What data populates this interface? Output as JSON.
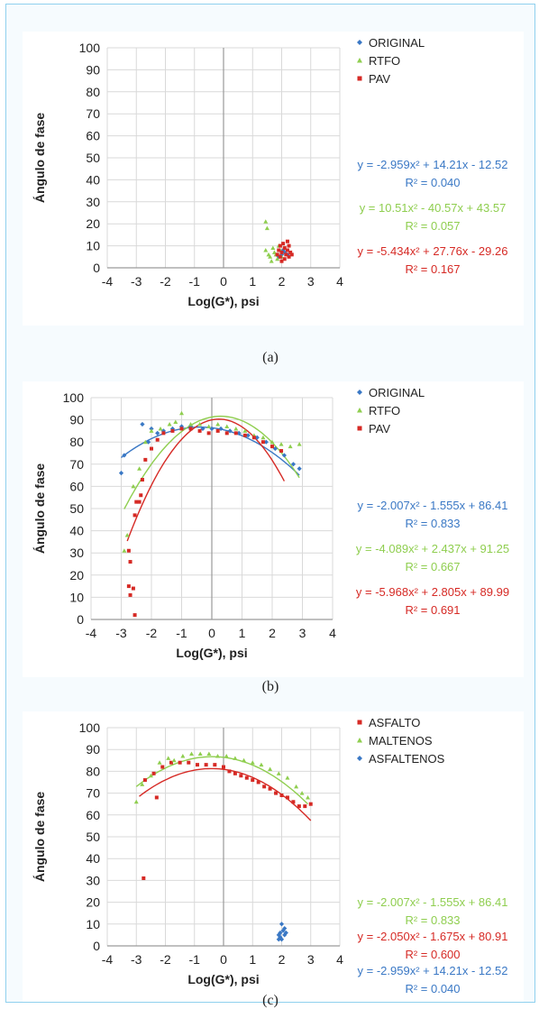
{
  "captions": [
    "(a)",
    "(b)",
    "(c)"
  ],
  "colors": {
    "blue": "#3a78c5",
    "green": "#8fce4f",
    "red": "#d62a25",
    "axis": "#9a9a9a",
    "grid": "#d9d9d9"
  },
  "chart_data": [
    {
      "type": "scatter",
      "ylabel": "Ángulo de fase",
      "xlabel": "Log(G*), psi",
      "xlim": [
        -4,
        4
      ],
      "ylim": [
        0,
        100
      ],
      "xticks": [
        -4,
        -3,
        -2,
        -1,
        0,
        1,
        2,
        3,
        4
      ],
      "yticks": [
        0,
        10,
        20,
        30,
        40,
        50,
        60,
        70,
        80,
        90,
        100
      ],
      "grid": true,
      "legend_position": "top-right",
      "series": [
        {
          "name": "ORIGINAL",
          "color": "blue",
          "points": [
            [
              1.9,
              5
            ],
            [
              2.0,
              6
            ],
            [
              2.1,
              7
            ],
            [
              2.2,
              6
            ],
            [
              2.05,
              8
            ]
          ],
          "fit": null
        },
        {
          "name": "RTFO",
          "color": "green",
          "points": [
            [
              1.45,
              21
            ],
            [
              1.5,
              18
            ],
            [
              1.45,
              8
            ],
            [
              1.55,
              6
            ],
            [
              1.6,
              5
            ],
            [
              1.7,
              9
            ],
            [
              1.75,
              7
            ],
            [
              1.8,
              6
            ],
            [
              1.9,
              10
            ],
            [
              1.95,
              8
            ],
            [
              2.0,
              5
            ],
            [
              1.65,
              3
            ],
            [
              1.85,
              4
            ]
          ],
          "fit": null
        },
        {
          "name": "PAV",
          "color": "red",
          "points": [
            [
              1.85,
              6
            ],
            [
              1.9,
              8
            ],
            [
              1.95,
              10
            ],
            [
              2.0,
              7
            ],
            [
              2.05,
              11
            ],
            [
              2.1,
              9
            ],
            [
              2.15,
              6
            ],
            [
              2.2,
              8
            ],
            [
              2.25,
              5
            ],
            [
              2.3,
              7
            ],
            [
              2.35,
              6
            ],
            [
              2.1,
              4
            ],
            [
              1.95,
              5
            ],
            [
              2.0,
              3
            ],
            [
              2.2,
              12
            ],
            [
              2.25,
              10
            ]
          ],
          "fit": null
        }
      ],
      "equations": [
        {
          "eq": "y = -2.959x² + 14.21x - 12.52",
          "r2": "R² = 0.040",
          "color": "blue"
        },
        {
          "eq": "y = 10.51x² - 40.57x + 43.57",
          "r2": "R² = 0.057",
          "color": "green"
        },
        {
          "eq": "y = -5.434x² + 27.76x - 29.26",
          "r2": "R² = 0.167",
          "color": "red"
        }
      ]
    },
    {
      "type": "scatter",
      "ylabel": "Ángulo de fase",
      "xlabel": "Log(G*), psi",
      "xlim": [
        -4,
        4
      ],
      "ylim": [
        0,
        100
      ],
      "xticks": [
        -4,
        -3,
        -2,
        -1,
        0,
        1,
        2,
        3,
        4
      ],
      "yticks": [
        0,
        10,
        20,
        30,
        40,
        50,
        60,
        70,
        80,
        90,
        100
      ],
      "grid": true,
      "legend_position": "top-right",
      "series": [
        {
          "name": "ORIGINAL",
          "color": "blue",
          "points": [
            [
              -3.0,
              66
            ],
            [
              -2.9,
              74
            ],
            [
              -2.3,
              88
            ],
            [
              -2.1,
              80
            ],
            [
              -2.0,
              86
            ],
            [
              -1.8,
              84
            ],
            [
              -1.6,
              85
            ],
            [
              -1.3,
              86
            ],
            [
              -1.0,
              87
            ],
            [
              -0.7,
              87
            ],
            [
              -0.3,
              86
            ],
            [
              0.0,
              86
            ],
            [
              0.3,
              86
            ],
            [
              0.6,
              85
            ],
            [
              0.9,
              84
            ],
            [
              1.2,
              83
            ],
            [
              1.5,
              82
            ],
            [
              1.8,
              80
            ],
            [
              2.1,
              77
            ],
            [
              2.4,
              74
            ],
            [
              2.7,
              70
            ],
            [
              2.9,
              68
            ]
          ],
          "fit": [
            -2.007,
            -1.555,
            86.41
          ],
          "fit_range": [
            -3.0,
            2.9
          ]
        },
        {
          "name": "RTFO",
          "color": "green",
          "points": [
            [
              -2.9,
              31
            ],
            [
              -2.8,
              38
            ],
            [
              -2.6,
              60
            ],
            [
              -2.4,
              68
            ],
            [
              -2.2,
              80
            ],
            [
              -2.0,
              85
            ],
            [
              -1.7,
              86
            ],
            [
              -1.4,
              88
            ],
            [
              -1.2,
              89
            ],
            [
              -1.0,
              93
            ],
            [
              -0.7,
              88
            ],
            [
              -0.4,
              88
            ],
            [
              -0.1,
              87
            ],
            [
              0.2,
              88
            ],
            [
              0.5,
              87
            ],
            [
              0.8,
              86
            ],
            [
              1.1,
              85
            ],
            [
              1.4,
              83
            ],
            [
              1.7,
              82
            ],
            [
              2.0,
              80
            ],
            [
              2.3,
              79
            ],
            [
              2.6,
              78
            ],
            [
              2.9,
              79
            ]
          ],
          "fit": [
            -4.089,
            2.437,
            91.25
          ],
          "fit_range": [
            -2.9,
            2.9
          ]
        },
        {
          "name": "PAV",
          "color": "red",
          "points": [
            [
              -2.75,
              15
            ],
            [
              -2.7,
              11
            ],
            [
              -2.6,
              14
            ],
            [
              -2.55,
              2
            ],
            [
              -2.75,
              31
            ],
            [
              -2.7,
              26
            ],
            [
              -2.55,
              47
            ],
            [
              -2.5,
              53
            ],
            [
              -2.4,
              53
            ],
            [
              -2.35,
              56
            ],
            [
              -2.3,
              63
            ],
            [
              -2.2,
              72
            ],
            [
              -2.0,
              77
            ],
            [
              -1.8,
              81
            ],
            [
              -1.6,
              84
            ],
            [
              -1.3,
              85
            ],
            [
              -1.0,
              86
            ],
            [
              -0.7,
              86
            ],
            [
              -0.4,
              85
            ],
            [
              -0.1,
              84
            ],
            [
              0.2,
              85
            ],
            [
              0.5,
              84
            ],
            [
              0.8,
              84
            ],
            [
              1.1,
              83
            ],
            [
              1.4,
              82
            ],
            [
              1.7,
              80
            ],
            [
              2.0,
              78
            ],
            [
              2.3,
              76
            ]
          ],
          "fit": [
            -5.968,
            2.805,
            89.99
          ],
          "fit_range": [
            -2.8,
            2.4
          ]
        }
      ],
      "equations": [
        {
          "eq": "y = -2.007x² - 1.555x + 86.41",
          "r2": "R² = 0.833",
          "color": "blue"
        },
        {
          "eq": "y = -4.089x² + 2.437x + 91.25",
          "r2": "R² = 0.667",
          "color": "green"
        },
        {
          "eq": "y = -5.968x² + 2.805x + 89.99",
          "r2": "R² = 0.691",
          "color": "red"
        }
      ]
    },
    {
      "type": "scatter",
      "ylabel": "Ángulo de fase",
      "xlabel": "Log(G*), psi",
      "xlim": [
        -4,
        4
      ],
      "ylim": [
        0,
        100
      ],
      "xticks": [
        -4,
        -3,
        -2,
        -1,
        0,
        1,
        2,
        3,
        4
      ],
      "yticks": [
        0,
        10,
        20,
        30,
        40,
        50,
        60,
        70,
        80,
        90,
        100
      ],
      "grid": true,
      "legend_position": "top-right",
      "series": [
        {
          "name": "ASFALTO",
          "color": "red",
          "points": [
            [
              -2.75,
              31
            ],
            [
              -2.3,
              68
            ],
            [
              -2.7,
              76
            ],
            [
              -2.4,
              79
            ],
            [
              -2.1,
              82
            ],
            [
              -1.8,
              84
            ],
            [
              -1.5,
              84
            ],
            [
              -1.2,
              84
            ],
            [
              -0.9,
              83
            ],
            [
              -0.6,
              83
            ],
            [
              -0.3,
              83
            ],
            [
              0.0,
              82
            ],
            [
              0.2,
              80
            ],
            [
              0.4,
              79
            ],
            [
              0.6,
              78
            ],
            [
              0.8,
              77
            ],
            [
              1.0,
              76
            ],
            [
              1.2,
              75
            ],
            [
              1.4,
              73
            ],
            [
              1.6,
              72
            ],
            [
              1.8,
              70
            ],
            [
              2.0,
              69
            ],
            [
              2.2,
              68
            ],
            [
              2.4,
              66
            ],
            [
              2.6,
              64
            ],
            [
              2.8,
              64
            ],
            [
              3.0,
              65
            ]
          ],
          "fit": [
            -2.05,
            -1.675,
            80.91
          ],
          "fit_range": [
            -2.9,
            3.0
          ]
        },
        {
          "name": "MALTENOS",
          "color": "green",
          "points": [
            [
              -3.0,
              66
            ],
            [
              -2.8,
              74
            ],
            [
              -2.5,
              78
            ],
            [
              -2.2,
              84
            ],
            [
              -1.9,
              86
            ],
            [
              -1.7,
              85
            ],
            [
              -1.4,
              87
            ],
            [
              -1.1,
              88
            ],
            [
              -0.8,
              88
            ],
            [
              -0.5,
              88
            ],
            [
              -0.2,
              87
            ],
            [
              0.1,
              87
            ],
            [
              0.4,
              86
            ],
            [
              0.7,
              85
            ],
            [
              1.0,
              84
            ],
            [
              1.3,
              83
            ],
            [
              1.6,
              81
            ],
            [
              1.9,
              79
            ],
            [
              2.2,
              77
            ],
            [
              2.5,
              73
            ],
            [
              2.7,
              70
            ],
            [
              2.9,
              68
            ]
          ],
          "fit": [
            -2.007,
            -1.555,
            86.41
          ],
          "fit_range": [
            -3.0,
            2.9
          ]
        },
        {
          "name": "ASFALTENOS",
          "color": "blue",
          "points": [
            [
              1.9,
              5
            ],
            [
              1.95,
              6
            ],
            [
              2.0,
              10
            ],
            [
              2.05,
              7
            ],
            [
              2.1,
              5
            ],
            [
              2.0,
              3
            ],
            [
              1.95,
              4
            ],
            [
              2.1,
              8
            ],
            [
              2.15,
              6
            ],
            [
              1.9,
              3
            ]
          ],
          "fit": null
        }
      ],
      "equations": [
        {
          "eq": "y = -2.007x² - 1.555x + 86.41",
          "r2": "R² = 0.833",
          "color": "green"
        },
        {
          "eq": "y = -2.050x² - 1.675x + 80.91",
          "r2": "R² = 0.600",
          "color": "red"
        },
        {
          "eq": "y = -2.959x² + 14.21x - 12.52",
          "r2": "R² = 0.040",
          "color": "blue"
        }
      ]
    }
  ]
}
